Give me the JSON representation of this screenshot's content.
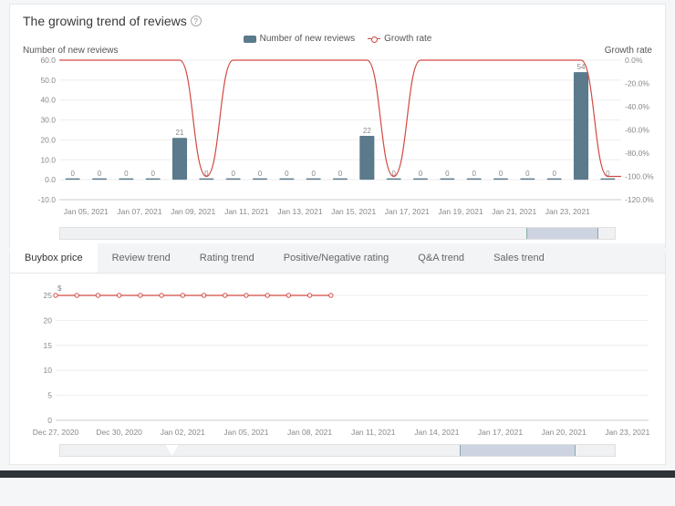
{
  "reviews_panel": {
    "title": "The growing trend of reviews",
    "legend": {
      "bars": "Number of new reviews",
      "line": "Growth rate"
    },
    "y_left_label": "Number of new reviews",
    "y_right_label": "Growth rate",
    "chart": {
      "type": "bar+line",
      "bar_color": "#5b7a8c",
      "line_color": "#d24a43",
      "grid_color": "#eeeeee",
      "axis_color": "#cccccc",
      "bg": "#ffffff",
      "y_left": {
        "min": -10,
        "max": 60,
        "step": 10
      },
      "y_right": {
        "min": -120,
        "max": 0,
        "step": 20,
        "suffix": "%"
      },
      "x_labels": [
        "Jan 05, 2021",
        "Jan 07, 2021",
        "Jan 09, 2021",
        "Jan 11, 2021",
        "Jan 13, 2021",
        "Jan 15, 2021",
        "Jan 17, 2021",
        "Jan 19, 2021",
        "Jan 21, 2021",
        "Jan 23, 2021"
      ],
      "bars": [
        0,
        0,
        0,
        0,
        21,
        0,
        0,
        0,
        0,
        0,
        0,
        22,
        0,
        0,
        0,
        0,
        0,
        0,
        0,
        54,
        0
      ],
      "bar_labels": [
        "0",
        "0",
        "0",
        "0",
        "21",
        "0",
        "0",
        "0",
        "0",
        "0",
        "0",
        "22",
        "0",
        "0",
        "0",
        "0",
        "0",
        "0",
        "0",
        "54",
        "0"
      ],
      "growth": [
        0,
        0,
        0,
        0,
        0,
        -100,
        0,
        0,
        0,
        0,
        0,
        0,
        -100,
        0,
        0,
        0,
        0,
        0,
        0,
        0,
        -100
      ]
    },
    "scrubber_sel": {
      "left_pct": 84,
      "width_pct": 13
    }
  },
  "tabs": {
    "items": [
      "Buybox price",
      "Review trend",
      "Rating trend",
      "Positive/Negative rating",
      "Q&A trend",
      "Sales trend"
    ],
    "active": 0
  },
  "buybox_panel": {
    "chart": {
      "type": "line",
      "line_color": "#d24a43",
      "grid_color": "#eeeeee",
      "axis_color": "#cccccc",
      "y": {
        "min": 0,
        "max": 25,
        "step": 5
      },
      "x_labels": [
        "Dec 27, 2020",
        "Dec 30, 2020",
        "Jan 02, 2021",
        "Jan 05, 2021",
        "Jan 08, 2021",
        "Jan 11, 2021",
        "Jan 14, 2021",
        "Jan 17, 2021",
        "Jan 20, 2021",
        "Jan 23, 2021"
      ],
      "points_x_idx": [
        0,
        1,
        2,
        3,
        4,
        5,
        6,
        7,
        8,
        9,
        10,
        11,
        12,
        13
      ],
      "value": 25,
      "value_label": "$"
    },
    "scrubber_sel": {
      "left_pct": 72,
      "width_pct": 21
    },
    "scrubber_notch_pct": 19
  }
}
